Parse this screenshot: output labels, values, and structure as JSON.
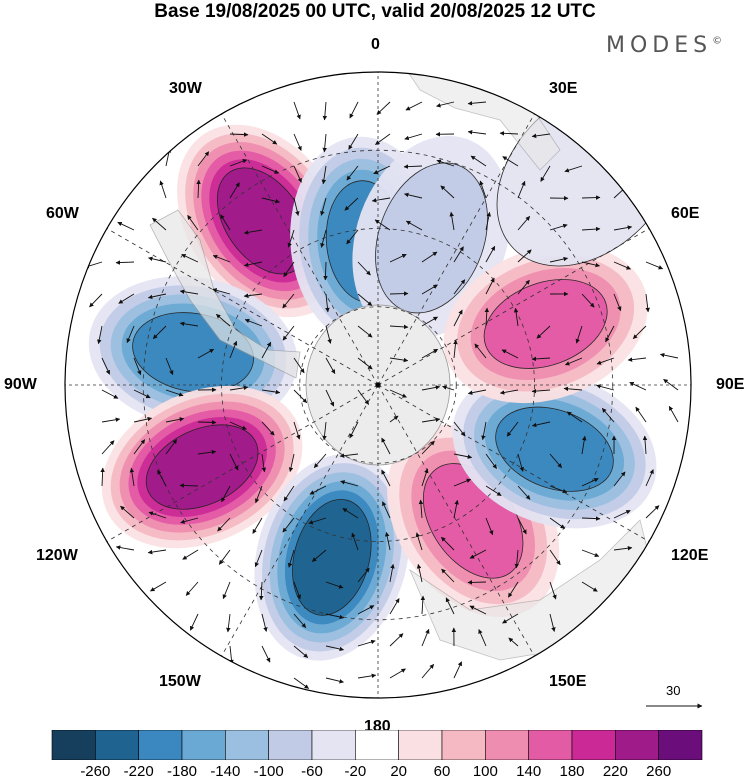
{
  "title": "Base 19/08/2025 00 UTC, valid 20/08/2025 12 UTC",
  "brand": "MODES",
  "brand_mark": "©",
  "lon_labels": {
    "n": "0",
    "ne30": "30E",
    "ne60": "60E",
    "e": "90E",
    "se120": "120E",
    "se150": "150E",
    "s": "180",
    "sw150": "150W",
    "sw120": "120W",
    "w": "90W",
    "nw60": "60W",
    "nw30": "30W"
  },
  "reference_vector_label": "30",
  "colorbar": {
    "colors": [
      "#163f5e",
      "#1f6390",
      "#3a88bf",
      "#6aa9d3",
      "#9bbfe0",
      "#c2cbe6",
      "#e4e4f2",
      "#ffffff",
      "#fbe0e3",
      "#f5b9c4",
      "#ef8db0",
      "#e35aa5",
      "#cb2a96",
      "#9f1b8a",
      "#6b0e7c"
    ],
    "tick_labels": [
      "-260",
      "-220",
      "-180",
      "-140",
      "-100",
      "-60",
      "-20",
      "20",
      "60",
      "100",
      "140",
      "180",
      "220",
      "260"
    ]
  },
  "anomaly_centers": [
    {
      "lon": -35,
      "colat": 0.64,
      "value": 240,
      "sign": "positive"
    },
    {
      "lon": -5,
      "colat": 0.46,
      "value": -180,
      "sign": "negative"
    },
    {
      "lon": 20,
      "colat": 0.5,
      "value": -60,
      "sign": "negative"
    },
    {
      "lon": -80,
      "colat": 0.6,
      "value": -200,
      "sign": "negative"
    },
    {
      "lon": -115,
      "colat": 0.62,
      "value": 250,
      "sign": "positive"
    },
    {
      "lon": -165,
      "colat": 0.57,
      "value": -230,
      "sign": "negative"
    },
    {
      "lon": 145,
      "colat": 0.53,
      "value": 170,
      "sign": "positive"
    },
    {
      "lon": 110,
      "colat": 0.6,
      "value": -200,
      "sign": "negative"
    },
    {
      "lon": 70,
      "colat": 0.57,
      "value": 150,
      "sign": "positive"
    },
    {
      "lon": 45,
      "colat": 0.95,
      "value": -40,
      "sign": "negative"
    }
  ]
}
